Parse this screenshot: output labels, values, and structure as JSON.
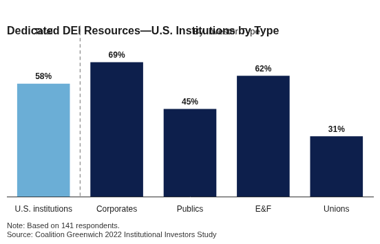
{
  "chart_data": {
    "type": "bar",
    "title": "Dedicated DEI Resources—U.S. Institutions by Type",
    "annotations": [
      "Total",
      "By Investor Type"
    ],
    "note": "Note: Based on 141 respondents.\nSource: Coalition Greenwich 2022 Institutional Investors Study",
    "categories": [
      "U.S. institutions",
      "Corporates",
      "Publics",
      "E&F",
      "Unions"
    ],
    "values": [
      58,
      69,
      45,
      62,
      31
    ],
    "value_labels": [
      "58%",
      "69%",
      "45%",
      "62%",
      "31%"
    ],
    "colors": [
      "#6baed6",
      "#0d1f4c",
      "#0d1f4c",
      "#0d1f4c",
      "#0d1f4c"
    ],
    "ylim": [
      0,
      80
    ],
    "grid": false,
    "data_labels": true,
    "tick_labels": "x"
  }
}
